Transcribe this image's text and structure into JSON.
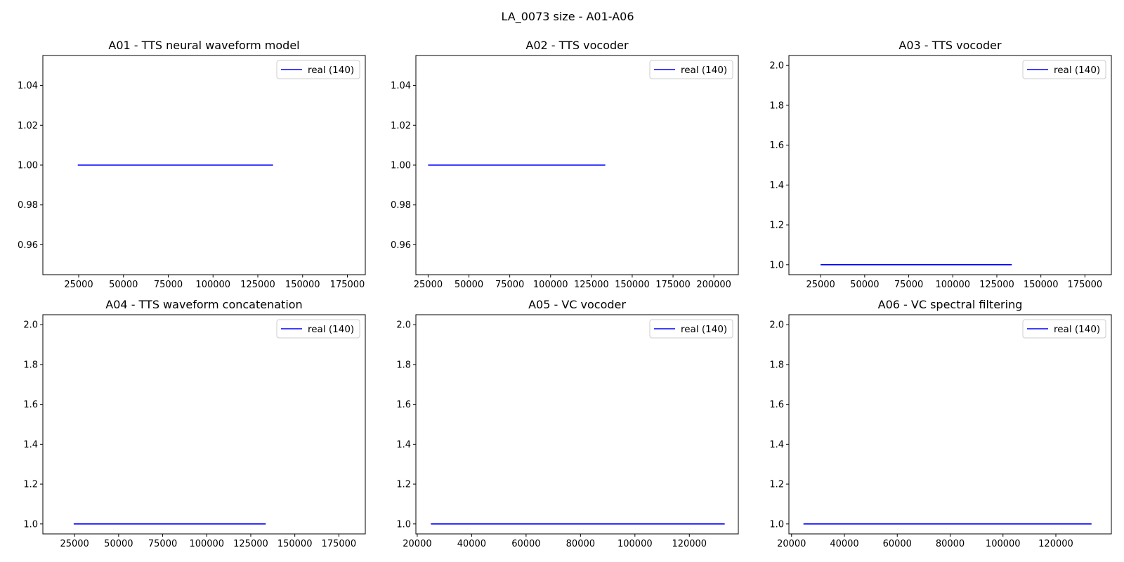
{
  "figure": {
    "title": "LA_0073 size - A01-A06"
  },
  "colors": {
    "line": "#0000ff",
    "axes": "#000000",
    "legend_border": "#cccccc"
  },
  "chart_data": [
    {
      "type": "line",
      "title": "A01 - TTS neural waveform model",
      "legend_position": "upper-right",
      "xlim": [
        5000,
        185000
      ],
      "ylim": [
        0.945,
        1.055
      ],
      "xticks": [
        25000,
        50000,
        75000,
        100000,
        125000,
        150000,
        175000
      ],
      "yticks": [
        0.96,
        0.98,
        1.0,
        1.02,
        1.04
      ],
      "ytick_labels": [
        "0.96",
        "0.98",
        "1.00",
        "1.02",
        "1.04"
      ],
      "series": [
        {
          "name": "real (140)",
          "x": [
            24500,
            133500
          ],
          "y": [
            1.0,
            1.0
          ]
        }
      ]
    },
    {
      "type": "line",
      "title": "A02 - TTS vocoder",
      "legend_position": "upper-right",
      "xlim": [
        17500,
        215000
      ],
      "ylim": [
        0.945,
        1.055
      ],
      "xticks": [
        25000,
        50000,
        75000,
        100000,
        125000,
        150000,
        175000,
        200000
      ],
      "yticks": [
        0.96,
        0.98,
        1.0,
        1.02,
        1.04
      ],
      "ytick_labels": [
        "0.96",
        "0.98",
        "1.00",
        "1.02",
        "1.04"
      ],
      "series": [
        {
          "name": "real (140)",
          "x": [
            25000,
            133500
          ],
          "y": [
            1.0,
            1.0
          ]
        }
      ]
    },
    {
      "type": "line",
      "title": "A03 - TTS vocoder",
      "legend_position": "upper-right",
      "xlim": [
        7000,
        190000
      ],
      "ylim": [
        0.95,
        2.05
      ],
      "xticks": [
        25000,
        50000,
        75000,
        100000,
        125000,
        150000,
        175000
      ],
      "yticks": [
        1.0,
        1.2,
        1.4,
        1.6,
        1.8,
        2.0
      ],
      "ytick_labels": [
        "1.0",
        "1.2",
        "1.4",
        "1.6",
        "1.8",
        "2.0"
      ],
      "series": [
        {
          "name": "real (140)",
          "x": [
            25000,
            133500
          ],
          "y": [
            1.0,
            1.0
          ]
        }
      ]
    },
    {
      "type": "line",
      "title": "A04 - TTS waveform concatenation",
      "legend_position": "upper-right",
      "xlim": [
        7000,
        190000
      ],
      "ylim": [
        0.95,
        2.05
      ],
      "xticks": [
        25000,
        50000,
        75000,
        100000,
        125000,
        150000,
        175000
      ],
      "yticks": [
        1.0,
        1.2,
        1.4,
        1.6,
        1.8,
        2.0
      ],
      "ytick_labels": [
        "1.0",
        "1.2",
        "1.4",
        "1.6",
        "1.8",
        "2.0"
      ],
      "series": [
        {
          "name": "real (140)",
          "x": [
            24500,
            133500
          ],
          "y": [
            1.0,
            1.0
          ]
        }
      ]
    },
    {
      "type": "line",
      "title": "A05 - VC vocoder",
      "legend_position": "upper-right",
      "xlim": [
        19500,
        138000
      ],
      "ylim": [
        0.95,
        2.05
      ],
      "xticks": [
        20000,
        40000,
        60000,
        80000,
        100000,
        120000
      ],
      "yticks": [
        1.0,
        1.2,
        1.4,
        1.6,
        1.8,
        2.0
      ],
      "ytick_labels": [
        "1.0",
        "1.2",
        "1.4",
        "1.6",
        "1.8",
        "2.0"
      ],
      "series": [
        {
          "name": "real (140)",
          "x": [
            25000,
            133000
          ],
          "y": [
            1.0,
            1.0
          ]
        }
      ]
    },
    {
      "type": "line",
      "title": "A06 - VC spectral filtering",
      "legend_position": "upper-right",
      "xlim": [
        19000,
        141000
      ],
      "ylim": [
        0.95,
        2.05
      ],
      "xticks": [
        20000,
        40000,
        60000,
        80000,
        100000,
        120000
      ],
      "yticks": [
        1.0,
        1.2,
        1.4,
        1.6,
        1.8,
        2.0
      ],
      "ytick_labels": [
        "1.0",
        "1.2",
        "1.4",
        "1.6",
        "1.8",
        "2.0"
      ],
      "series": [
        {
          "name": "real (140)",
          "x": [
            24500,
            133500
          ],
          "y": [
            1.0,
            1.0
          ]
        }
      ]
    }
  ]
}
